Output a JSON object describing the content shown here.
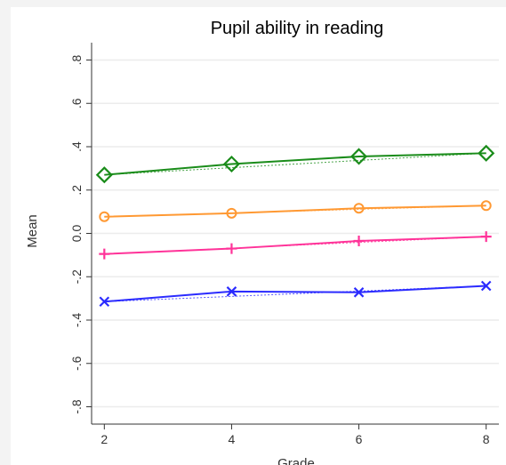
{
  "chart_data": {
    "type": "line",
    "title": "Pupil ability in reading",
    "xlabel": "Grade",
    "ylabel": "Mean",
    "x": [
      2,
      4,
      6,
      8
    ],
    "xlim": [
      1.8,
      8.2
    ],
    "ylim": [
      -0.88,
      0.88
    ],
    "x_ticks": [
      2,
      4,
      6,
      8
    ],
    "x_tick_labels": [
      "2",
      "4",
      "6",
      "8"
    ],
    "y_ticks": [
      -0.8,
      -0.6,
      -0.4,
      -0.2,
      0.0,
      0.2,
      0.4,
      0.6,
      0.8
    ],
    "y_tick_labels": [
      "-.8",
      "-.6",
      "-.4",
      "-.2",
      "0.0",
      ".2",
      ".4",
      ".6",
      ".8"
    ],
    "grid": true,
    "legend": "none",
    "series": [
      {
        "color": "#1a8c1a",
        "marker": "diamond",
        "values": [
          0.27,
          0.32,
          0.355,
          0.37
        ]
      },
      {
        "color": "#ff9933",
        "marker": "circle",
        "values": [
          0.077,
          0.093,
          0.116,
          0.128
        ]
      },
      {
        "color": "#ff3399",
        "marker": "plus",
        "values": [
          -0.095,
          -0.07,
          -0.035,
          -0.015
        ]
      },
      {
        "color": "#2b2bff",
        "marker": "cross",
        "values": [
          -0.315,
          -0.268,
          -0.272,
          -0.242
        ]
      }
    ]
  }
}
